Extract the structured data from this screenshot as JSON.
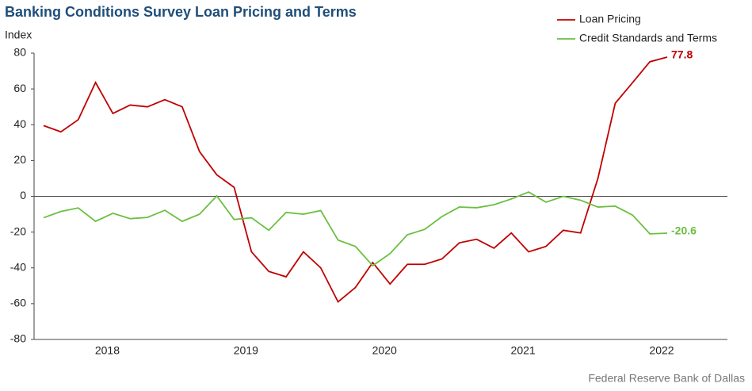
{
  "chart_data": {
    "type": "line",
    "title": "Banking Conditions Survey Loan Pricing and Terms",
    "y_label": "Index",
    "source": "Federal Reserve Bank of Dallas",
    "categories": [
      null,
      null,
      null,
      null,
      "2018",
      null,
      null,
      null,
      null,
      null,
      null,
      null,
      "2019",
      null,
      null,
      null,
      null,
      null,
      null,
      null,
      "2020",
      null,
      null,
      null,
      null,
      null,
      null,
      null,
      "2021",
      null,
      null,
      null,
      null,
      null,
      null,
      null,
      "2022"
    ],
    "series": [
      {
        "name": "Loan Pricing",
        "color": "#c00000",
        "values": [
          39.5,
          36,
          42.8,
          63.6,
          46.3,
          51,
          50,
          54,
          50,
          25,
          12,
          5,
          -31,
          -42,
          -45,
          -31,
          -40,
          -59,
          -51,
          -37,
          -49,
          -38,
          -38,
          -35,
          -26,
          -24,
          -29,
          -20.5,
          -31,
          -28,
          -19,
          -20.5,
          10,
          52,
          63.5,
          75.2,
          77.8
        ]
      },
      {
        "name": "Credit Standards and Terms",
        "color": "#6abf40",
        "values": [
          -12,
          -8.5,
          -6.5,
          -14,
          -9.5,
          -12.5,
          -11.8,
          -7.8,
          -14,
          -10,
          0.2,
          -13,
          -12,
          -19,
          -9,
          -10,
          -8,
          -24.5,
          -28,
          -38.8,
          -32,
          -21.5,
          -18.5,
          -11.3,
          -6,
          -6.4,
          -4.7,
          -1.5,
          2.4,
          -3.3,
          0,
          -2.2,
          -6,
          -5.5,
          -10.5,
          -21,
          -20.6
        ]
      }
    ],
    "ylim": [
      -80,
      80
    ],
    "yticks": [
      -80,
      -60,
      -40,
      -20,
      0,
      20,
      40,
      60,
      80
    ],
    "grid": false
  }
}
